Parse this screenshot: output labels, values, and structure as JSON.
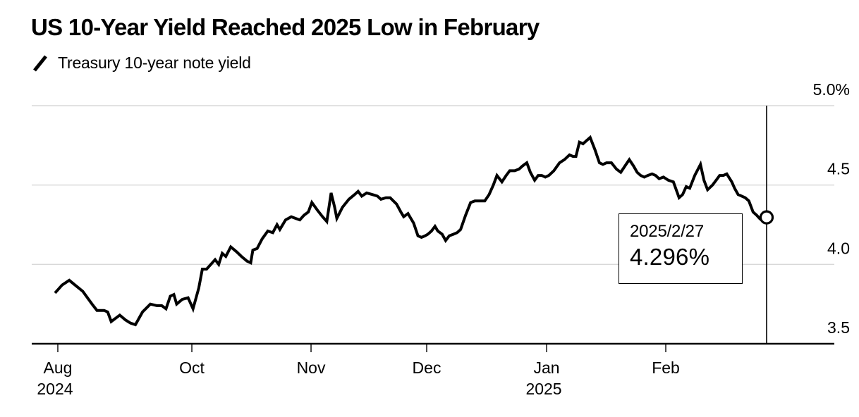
{
  "title": "US 10-Year Yield Reached 2025 Low in February",
  "legend": {
    "marker": "slash-line-icon",
    "series_label": "Treasury 10-year note yield"
  },
  "annotation": {
    "date": "2025/2/27",
    "value_label": "4.296%"
  },
  "chart_data": {
    "type": "line",
    "title": "US 10-Year Yield Reached 2025 Low in February",
    "series_name": "Treasury 10-year note yield",
    "unit": "%",
    "ylim": [
      3.5,
      5.0
    ],
    "grid": "horizontal",
    "legend_position": "top-left",
    "y_ticks": [
      {
        "label": "5.0%",
        "value": 5.0
      },
      {
        "label": "4.5",
        "value": 4.5
      },
      {
        "label": "4.0",
        "value": 4.0
      },
      {
        "label": "3.5",
        "value": 3.5
      }
    ],
    "x_ticks": [
      {
        "label": "Aug",
        "sub": "2024",
        "pos": 0.0325
      },
      {
        "label": "Oct",
        "sub": "",
        "pos": 0.1995
      },
      {
        "label": "Nov",
        "sub": "",
        "pos": 0.348
      },
      {
        "label": "Dec",
        "sub": "",
        "pos": 0.4921
      },
      {
        "label": "Jan",
        "sub": "2025",
        "pos": 0.6415
      },
      {
        "label": "Feb",
        "sub": "",
        "pos": 0.79
      }
    ],
    "x_range": [
      "Aug 2024",
      "2025/2/27"
    ],
    "last_point": {
      "date": "2025/2/27",
      "value": 4.296,
      "marker": "open-circle"
    },
    "colors": {
      "line": "#000000",
      "grid": "#d8d8d8",
      "axis": "#000000",
      "background": "#ffffff"
    },
    "points": [
      [
        0.0,
        3.82
      ],
      [
        0.01,
        3.87
      ],
      [
        0.02,
        3.9
      ],
      [
        0.028,
        3.87
      ],
      [
        0.039,
        3.83
      ],
      [
        0.052,
        3.75
      ],
      [
        0.059,
        3.71
      ],
      [
        0.069,
        3.71
      ],
      [
        0.074,
        3.7
      ],
      [
        0.079,
        3.64
      ],
      [
        0.091,
        3.68
      ],
      [
        0.099,
        3.65
      ],
      [
        0.106,
        3.63
      ],
      [
        0.113,
        3.62
      ],
      [
        0.123,
        3.7
      ],
      [
        0.134,
        3.75
      ],
      [
        0.143,
        3.74
      ],
      [
        0.15,
        3.74
      ],
      [
        0.156,
        3.72
      ],
      [
        0.162,
        3.8
      ],
      [
        0.167,
        3.81
      ],
      [
        0.171,
        3.75
      ],
      [
        0.179,
        3.78
      ],
      [
        0.187,
        3.79
      ],
      [
        0.194,
        3.72
      ],
      [
        0.202,
        3.85
      ],
      [
        0.207,
        3.97
      ],
      [
        0.213,
        3.97
      ],
      [
        0.219,
        4.0
      ],
      [
        0.225,
        4.03
      ],
      [
        0.23,
        4.0
      ],
      [
        0.235,
        4.07
      ],
      [
        0.24,
        4.05
      ],
      [
        0.247,
        4.11
      ],
      [
        0.255,
        4.08
      ],
      [
        0.262,
        4.05
      ],
      [
        0.27,
        4.02
      ],
      [
        0.275,
        4.01
      ],
      [
        0.278,
        4.09
      ],
      [
        0.284,
        4.1
      ],
      [
        0.291,
        4.16
      ],
      [
        0.299,
        4.21
      ],
      [
        0.306,
        4.2
      ],
      [
        0.312,
        4.25
      ],
      [
        0.316,
        4.22
      ],
      [
        0.324,
        4.28
      ],
      [
        0.332,
        4.3
      ],
      [
        0.338,
        4.29
      ],
      [
        0.344,
        4.28
      ],
      [
        0.35,
        4.31
      ],
      [
        0.356,
        4.33
      ],
      [
        0.361,
        4.39
      ],
      [
        0.369,
        4.34
      ],
      [
        0.376,
        4.3
      ],
      [
        0.382,
        4.27
      ],
      [
        0.388,
        4.45
      ],
      [
        0.393,
        4.36
      ],
      [
        0.396,
        4.29
      ],
      [
        0.404,
        4.36
      ],
      [
        0.413,
        4.41
      ],
      [
        0.421,
        4.44
      ],
      [
        0.426,
        4.46
      ],
      [
        0.431,
        4.43
      ],
      [
        0.438,
        4.45
      ],
      [
        0.446,
        4.44
      ],
      [
        0.453,
        4.43
      ],
      [
        0.458,
        4.41
      ],
      [
        0.465,
        4.42
      ],
      [
        0.471,
        4.42
      ],
      [
        0.48,
        4.38
      ],
      [
        0.486,
        4.33
      ],
      [
        0.49,
        4.3
      ],
      [
        0.496,
        4.32
      ],
      [
        0.5,
        4.29
      ],
      [
        0.504,
        4.26
      ],
      [
        0.51,
        4.18
      ],
      [
        0.515,
        4.17
      ],
      [
        0.52,
        4.18
      ],
      [
        0.524,
        4.19
      ],
      [
        0.529,
        4.21
      ],
      [
        0.534,
        4.24
      ],
      [
        0.538,
        4.21
      ],
      [
        0.544,
        4.19
      ],
      [
        0.549,
        4.15
      ],
      [
        0.554,
        4.18
      ],
      [
        0.56,
        4.19
      ],
      [
        0.565,
        4.2
      ],
      [
        0.57,
        4.22
      ],
      [
        0.577,
        4.31
      ],
      [
        0.584,
        4.39
      ],
      [
        0.59,
        4.4
      ],
      [
        0.597,
        4.4
      ],
      [
        0.604,
        4.4
      ],
      [
        0.61,
        4.44
      ],
      [
        0.616,
        4.5
      ],
      [
        0.621,
        4.56
      ],
      [
        0.628,
        4.52
      ],
      [
        0.634,
        4.56
      ],
      [
        0.639,
        4.59
      ],
      [
        0.646,
        4.59
      ],
      [
        0.652,
        4.6
      ],
      [
        0.657,
        4.62
      ],
      [
        0.663,
        4.64
      ],
      [
        0.668,
        4.58
      ],
      [
        0.674,
        4.53
      ],
      [
        0.679,
        4.56
      ],
      [
        0.684,
        4.56
      ],
      [
        0.689,
        4.55
      ],
      [
        0.694,
        4.56
      ],
      [
        0.701,
        4.59
      ],
      [
        0.709,
        4.64
      ],
      [
        0.716,
        4.66
      ],
      [
        0.723,
        4.69
      ],
      [
        0.728,
        4.68
      ],
      [
        0.732,
        4.68
      ],
      [
        0.737,
        4.77
      ],
      [
        0.742,
        4.76
      ],
      [
        0.747,
        4.78
      ],
      [
        0.752,
        4.8
      ],
      [
        0.759,
        4.72
      ],
      [
        0.765,
        4.64
      ],
      [
        0.77,
        4.63
      ],
      [
        0.775,
        4.64
      ],
      [
        0.782,
        4.64
      ],
      [
        0.789,
        4.6
      ],
      [
        0.795,
        4.58
      ],
      [
        0.801,
        4.62
      ],
      [
        0.807,
        4.66
      ],
      [
        0.813,
        4.62
      ],
      [
        0.818,
        4.58
      ],
      [
        0.823,
        4.56
      ],
      [
        0.828,
        4.55
      ],
      [
        0.833,
        4.56
      ],
      [
        0.839,
        4.57
      ],
      [
        0.844,
        4.56
      ],
      [
        0.849,
        4.54
      ],
      [
        0.855,
        4.55
      ],
      [
        0.862,
        4.53
      ],
      [
        0.869,
        4.52
      ],
      [
        0.877,
        4.42
      ],
      [
        0.882,
        4.44
      ],
      [
        0.887,
        4.49
      ],
      [
        0.892,
        4.48
      ],
      [
        0.899,
        4.56
      ],
      [
        0.907,
        4.63
      ],
      [
        0.912,
        4.53
      ],
      [
        0.917,
        4.47
      ],
      [
        0.924,
        4.5
      ],
      [
        0.929,
        4.53
      ],
      [
        0.934,
        4.56
      ],
      [
        0.939,
        4.56
      ],
      [
        0.944,
        4.57
      ],
      [
        0.951,
        4.52
      ],
      [
        0.955,
        4.48
      ],
      [
        0.96,
        4.44
      ],
      [
        0.965,
        4.43
      ],
      [
        0.97,
        4.42
      ],
      [
        0.975,
        4.4
      ],
      [
        0.981,
        4.33
      ],
      [
        0.986,
        4.31
      ],
      [
        0.99,
        4.29
      ],
      [
        0.995,
        4.27
      ],
      [
        1.0,
        4.296
      ]
    ]
  }
}
